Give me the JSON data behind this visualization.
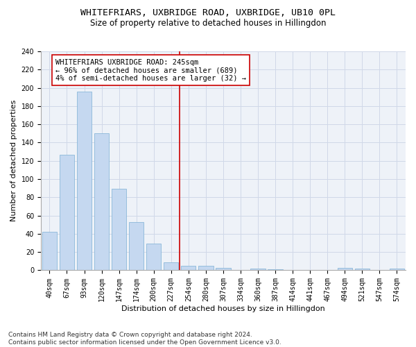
{
  "title": "WHITEFRIARS, UXBRIDGE ROAD, UXBRIDGE, UB10 0PL",
  "subtitle": "Size of property relative to detached houses in Hillingdon",
  "xlabel": "Distribution of detached houses by size in Hillingdon",
  "ylabel": "Number of detached properties",
  "bar_color": "#c5d8f0",
  "bar_edge_color": "#7bafd4",
  "categories": [
    "40sqm",
    "67sqm",
    "93sqm",
    "120sqm",
    "147sqm",
    "174sqm",
    "200sqm",
    "227sqm",
    "254sqm",
    "280sqm",
    "307sqm",
    "334sqm",
    "360sqm",
    "387sqm",
    "414sqm",
    "441sqm",
    "467sqm",
    "494sqm",
    "521sqm",
    "547sqm",
    "574sqm"
  ],
  "values": [
    42,
    127,
    196,
    150,
    89,
    53,
    29,
    9,
    5,
    5,
    3,
    0,
    2,
    1,
    0,
    0,
    0,
    3,
    2,
    0,
    2
  ],
  "vline_x": 7.5,
  "vline_color": "#cc0000",
  "annotation_text": "WHITEFRIARS UXBRIDGE ROAD: 245sqm\n← 96% of detached houses are smaller (689)\n4% of semi-detached houses are larger (32) →",
  "annotation_box_color": "#ffffff",
  "annotation_box_edge_color": "#cc0000",
  "ylim": [
    0,
    240
  ],
  "yticks": [
    0,
    20,
    40,
    60,
    80,
    100,
    120,
    140,
    160,
    180,
    200,
    220,
    240
  ],
  "grid_color": "#d0d8e8",
  "bg_color": "#eef2f8",
  "footnote": "Contains HM Land Registry data © Crown copyright and database right 2024.\nContains public sector information licensed under the Open Government Licence v3.0.",
  "title_fontsize": 9.5,
  "subtitle_fontsize": 8.5,
  "xlabel_fontsize": 8,
  "ylabel_fontsize": 8,
  "tick_fontsize": 7,
  "annot_fontsize": 7.5,
  "footnote_fontsize": 6.5
}
